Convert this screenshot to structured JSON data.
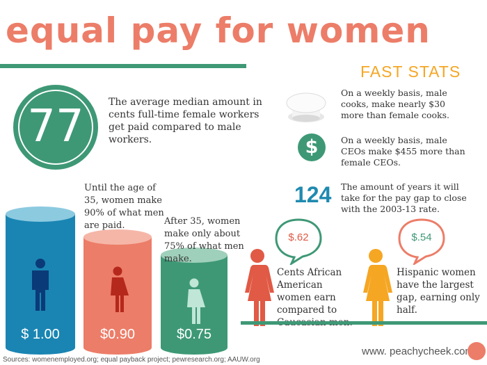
{
  "title": "equal pay for women",
  "fast_stats": {
    "heading": "FAST STATS",
    "cooks": "On a weekly basis, male cooks, make nearly $30 more than female cooks.",
    "ceos": "On a weekly basis, male CEOs make $455 more than female CEOs.",
    "years_value": "124",
    "years_text": "The amount of years it will take for the pay gap to close with the 2003-13 rate."
  },
  "median": {
    "value": "77",
    "text": "The average median amount in cents full-time female workers get paid compared to male workers."
  },
  "cylinders": [
    {
      "label": "$ 1.00",
      "color": "#1a85b3",
      "top_color": "#8ccae0",
      "fill": 1.0
    },
    {
      "label": "$0.90",
      "color": "#ec7d68",
      "top_color": "#f5b6a8",
      "fill": 0.9
    },
    {
      "label": "$0.75",
      "color": "#3e9876",
      "top_color": "#9fd0bb",
      "fill": 0.75
    }
  ],
  "captions": {
    "under35": "Until the age of 35, women make 90% of what men are paid.",
    "over35": "After 35, women make only about 75% of what men make."
  },
  "african_american": {
    "amount": "$.62",
    "text": "Cents African American women earn compared to Caucasian men.",
    "color": "#e05a45"
  },
  "hispanic": {
    "amount": "$.54",
    "text": "Hispanic women have the largest gap, earning only half.",
    "color": "#f5a623"
  },
  "footer": {
    "sources": "Sources: womenemployed.org; equal payback project; pewresearch.org; AAUW.org",
    "website": "www. peachycheek.com"
  },
  "colors": {
    "coral": "#ec7d68",
    "green": "#3e9876",
    "blue": "#1a85b3",
    "orange": "#f5a623"
  },
  "icons": [
    "chef-hat-icon",
    "dollar-sign-icon",
    "man-icon",
    "woman-icon",
    "speech-bubble-icon",
    "peach-dot-icon"
  ]
}
